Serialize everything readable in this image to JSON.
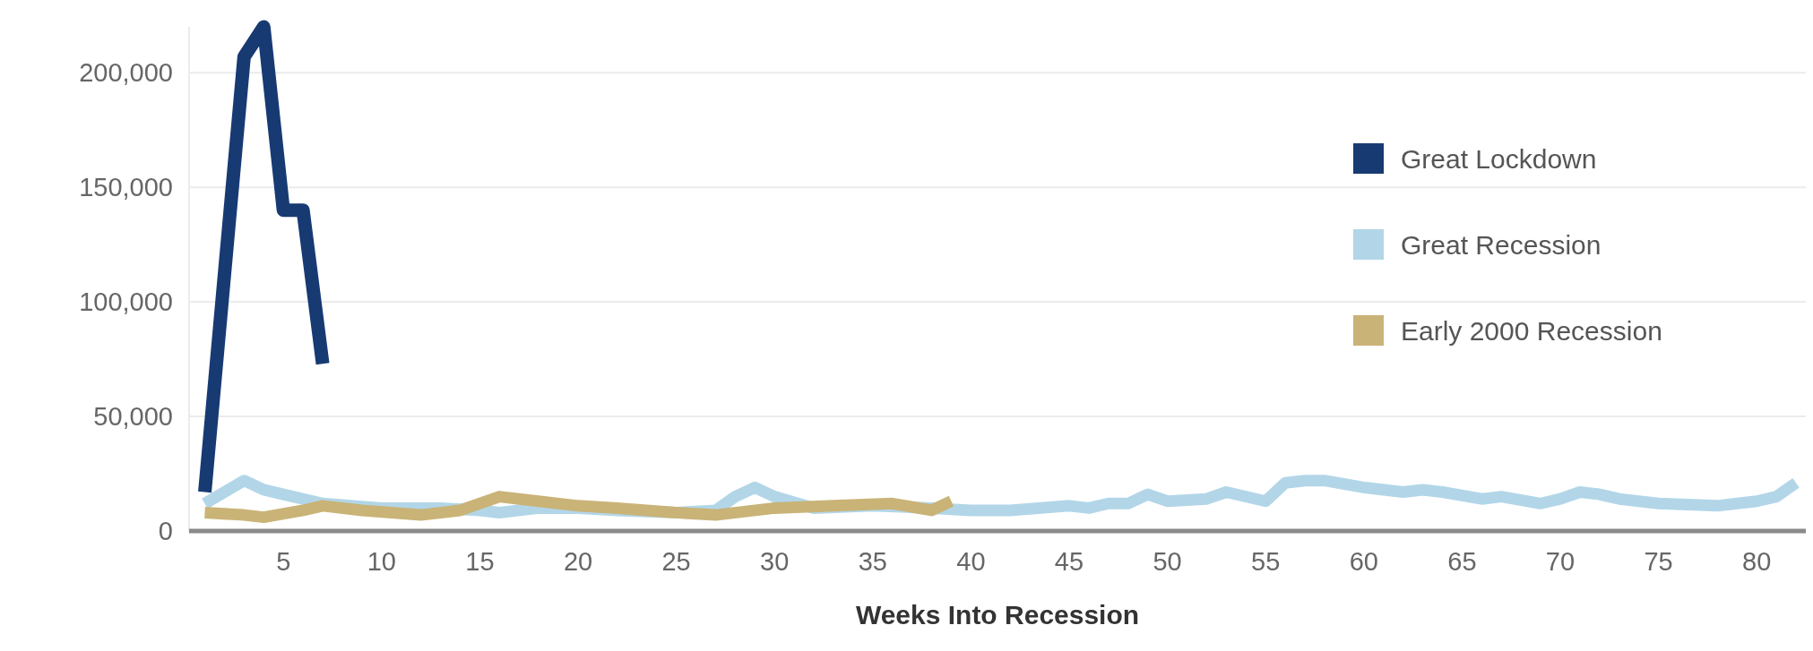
{
  "chart_data": {
    "type": "line",
    "xlabel": "Weeks Into Recession",
    "xlim": [
      0.2,
      82.5
    ],
    "xticks": [
      5,
      10,
      15,
      20,
      25,
      30,
      35,
      40,
      45,
      50,
      55,
      60,
      65,
      70,
      75,
      80
    ],
    "ylim": [
      0,
      220000
    ],
    "yticks": [
      {
        "value": 0,
        "label": "0"
      },
      {
        "value": 50000,
        "label": "50,000"
      },
      {
        "value": 100000,
        "label": "100,000"
      },
      {
        "value": 150000,
        "label": "150,000"
      },
      {
        "value": 200000,
        "label": "200,000"
      }
    ],
    "grid": "y",
    "legend": "right",
    "marker": "none",
    "line_style": "solid",
    "series": [
      {
        "name": "Great Lockdown",
        "color": "#173a72",
        "x": [
          1,
          3,
          4,
          5,
          6,
          7
        ],
        "values": [
          17000,
          207000,
          220000,
          140000,
          140000,
          73000
        ]
      },
      {
        "name": "Great Recession",
        "color": "#b2d6e8",
        "x": [
          1,
          3,
          4,
          5,
          7,
          10,
          13,
          15,
          16,
          18,
          20,
          22,
          25,
          27,
          28,
          29,
          30,
          32,
          35,
          38,
          40,
          42,
          45,
          46,
          47,
          48,
          49,
          50,
          52,
          53,
          55,
          56,
          57,
          58,
          60,
          62,
          63,
          64,
          66,
          67,
          69,
          70,
          71,
          72,
          73,
          75,
          78,
          79,
          80,
          81,
          82
        ],
        "values": [
          12000,
          22000,
          18000,
          16000,
          12000,
          10000,
          10000,
          9000,
          8000,
          10000,
          10000,
          9000,
          8000,
          9000,
          15000,
          19000,
          15000,
          10000,
          11000,
          10000,
          9000,
          9000,
          11000,
          10000,
          12000,
          12000,
          16000,
          13000,
          14000,
          17000,
          13000,
          21000,
          22000,
          22000,
          19000,
          17000,
          18000,
          17000,
          14000,
          15000,
          12000,
          14000,
          17000,
          16000,
          14000,
          12000,
          11000,
          12000,
          13000,
          15000,
          21000
        ]
      },
      {
        "name": "Early 2000 Recession",
        "color": "#c9b377",
        "x": [
          1,
          3,
          4,
          6,
          7,
          9,
          12,
          14,
          16,
          17,
          20,
          22,
          25,
          27,
          30,
          33,
          36,
          38,
          39
        ],
        "values": [
          8000,
          7000,
          6000,
          9000,
          11000,
          9000,
          7000,
          9000,
          15000,
          14000,
          11000,
          10000,
          8000,
          7000,
          10000,
          11000,
          12000,
          9000,
          13000
        ]
      }
    ]
  }
}
